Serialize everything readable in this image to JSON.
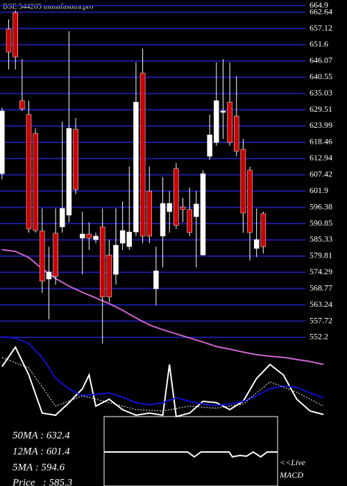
{
  "chart_data": [
    {
      "type": "candlestick",
      "title": "BSE 544205 munafasutra.pro",
      "x": [
        0,
        1,
        2,
        3,
        4,
        5,
        6,
        7,
        8,
        9,
        10,
        11,
        12,
        13,
        14,
        15,
        16,
        17,
        18,
        19,
        20,
        21,
        22,
        23,
        24,
        25,
        26,
        27,
        28,
        29,
        30,
        31,
        32,
        33,
        34,
        35,
        36,
        37,
        38,
        39
      ],
      "open": [
        607.8,
        656.9,
        662.54,
        632.6,
        627.9,
        621.5,
        588.3,
        572.0,
        587.6,
        589.7,
        593.7,
        622.9,
        585.9,
        587.3,
        585.4,
        589.7,
        580.2,
        573.6,
        584.2,
        583.0,
        588.0,
        642.0,
        601.9,
        568.7,
        586.6,
        594.9,
        609.5,
        596.5,
        595.6,
        593.2,
        580.2,
        613.7,
        618.4,
        628.6,
        632.1,
        627.4,
        616.1,
        609.0,
        582.4,
        594.2
      ],
      "high": [
        630.2,
        660.19,
        663.25,
        646.7,
        632.6,
        623.2,
        596.0,
        583.0,
        596.0,
        625.5,
        656.2,
        626.7,
        594.9,
        591.3,
        587.8,
        596.0,
        585.4,
        596.0,
        598.4,
        610.2,
        645.6,
        650.3,
        610.2,
        583.0,
        606.6,
        601.9,
        611.4,
        599.6,
        603.1,
        601.9,
        609.0,
        627.9,
        645.6,
        646.7,
        645.6,
        640.9,
        619.6,
        610.2,
        596.0,
        594.9
      ],
      "low": [
        605.9,
        643.2,
        643.2,
        629.1,
        587.8,
        587.8,
        567.3,
        558.3,
        570.1,
        587.8,
        591.3,
        600.8,
        573.6,
        581.9,
        584.2,
        550.1,
        564.2,
        570.1,
        581.9,
        581.9,
        586.6,
        584.2,
        584.2,
        563.1,
        576.0,
        587.8,
        589.0,
        591.3,
        586.6,
        576.0,
        580.0,
        612.5,
        617.3,
        619.6,
        617.3,
        613.7,
        587.8,
        578.3,
        579.5,
        580.7
      ],
      "close": [
        629.1,
        649.1,
        647.45,
        629.8,
        589.0,
        588.5,
        571.3,
        574.4,
        572.9,
        596.0,
        623.2,
        602.4,
        587.3,
        585.9,
        586.6,
        565.9,
        565.9,
        583.5,
        588.5,
        588.0,
        632.1,
        586.6,
        586.6,
        574.8,
        597.7,
        597.7,
        590.2,
        595.6,
        587.8,
        597.5,
        607.8,
        621.0,
        632.6,
        629.1,
        618.4,
        615.4,
        594.4,
        587.8,
        585.4,
        583.0
      ],
      "up_color": "#ffffff",
      "down_color": "#cc0000",
      "series": [
        {
          "color": "#cc66cc",
          "x": [
            0,
            2,
            4,
            6,
            8,
            10,
            12,
            14,
            16,
            18,
            20,
            22,
            24,
            26,
            28,
            30,
            32,
            34,
            36,
            38,
            40,
            42,
            44,
            46,
            48
          ],
          "values": [
            582.0,
            581.4,
            579.3,
            575.5,
            572.2,
            569.6,
            567.5,
            565.6,
            563.7,
            561.4,
            558.8,
            556.4,
            554.8,
            553.4,
            552.0,
            550.6,
            549.1,
            548.2,
            547.2,
            546.3,
            545.8,
            545.4,
            544.7,
            544.0,
            543.0
          ]
        }
      ],
      "xlim": [
        -0.3,
        51.5
      ],
      "ylim": [
        525.3,
        666.79
      ],
      "yticks": [
        664.9,
        662.64,
        657.12,
        651.6,
        646.07,
        640.55,
        635.03,
        629.51,
        623.99,
        618.46,
        612.94,
        607.42,
        601.9,
        596.38,
        590.85,
        585.33,
        579.81,
        574.29,
        568.77,
        563.24,
        557.72,
        552.2
      ],
      "grid": true,
      "grid_color": "#1c1c9c",
      "annotations": [
        "50MA : 632.4",
        "12MA : 601.4",
        "5MA : 594.6",
        "Price   : 585.3"
      ]
    },
    {
      "type": "line",
      "xlim": [
        -0.3,
        51.5
      ],
      "ylim": [
        0,
        100
      ],
      "series": [
        {
          "color": "#ffffff",
          "x": [
            0,
            2,
            4,
            6,
            8,
            10,
            12,
            13,
            14,
            16,
            18,
            20,
            22,
            24,
            25,
            26,
            28,
            30,
            32,
            34,
            36,
            38,
            40,
            42,
            44,
            46,
            48
          ],
          "values": [
            60,
            83.3,
            50,
            4.2,
            1.7,
            16.7,
            33.3,
            50,
            12.5,
            20.8,
            8.3,
            1.7,
            4.2,
            1.7,
            62.5,
            0,
            4.2,
            18.3,
            16.7,
            8.3,
            18.3,
            45.8,
            62.5,
            50,
            20.8,
            6.7,
            2.5
          ]
        },
        {
          "color": "#1010d0",
          "x": [
            0,
            2,
            4,
            6,
            8,
            10,
            12,
            14,
            16,
            18,
            20,
            22,
            24,
            26,
            28,
            30,
            32,
            34,
            36,
            38,
            40,
            42,
            44,
            46,
            48
          ],
          "values": [
            95.8,
            94.2,
            87.5,
            70.8,
            45.8,
            33.3,
            25,
            26.7,
            28.3,
            23.3,
            16.7,
            14.2,
            16.7,
            22.5,
            18.3,
            15,
            13.3,
            15,
            18.3,
            25,
            33.3,
            36.7,
            35,
            28.3,
            22.5
          ]
        },
        {
          "color": "#ffffff",
          "dashed": true,
          "x": [
            0,
            4,
            8,
            12,
            16,
            20,
            24,
            28,
            32,
            36,
            40,
            44,
            48
          ],
          "values": [
            70.8,
            58.3,
            12.5,
            25,
            16.7,
            8.3,
            6.7,
            12.5,
            10,
            15,
            41.7,
            29.2,
            12.5
          ]
        }
      ]
    },
    {
      "type": "line",
      "xlim": [
        -0.3,
        51.5
      ],
      "ylim": [
        -1,
        1
      ],
      "series": [
        {
          "color": "#ffffff",
          "x": [
            15.2,
            27.7,
            28.7,
            29.7,
            33.9,
            34.4,
            35.5,
            36.5,
            37.5,
            38.6,
            39.6,
            41.1
          ],
          "values": [
            -0.02,
            -0.02,
            -0.16,
            -0.02,
            -0.02,
            -0.16,
            -0.12,
            -0.14,
            -0.02,
            -0.16,
            -0.02,
            -0.02
          ]
        }
      ],
      "annotations": [
        "<<Live",
        "MACD"
      ]
    }
  ]
}
